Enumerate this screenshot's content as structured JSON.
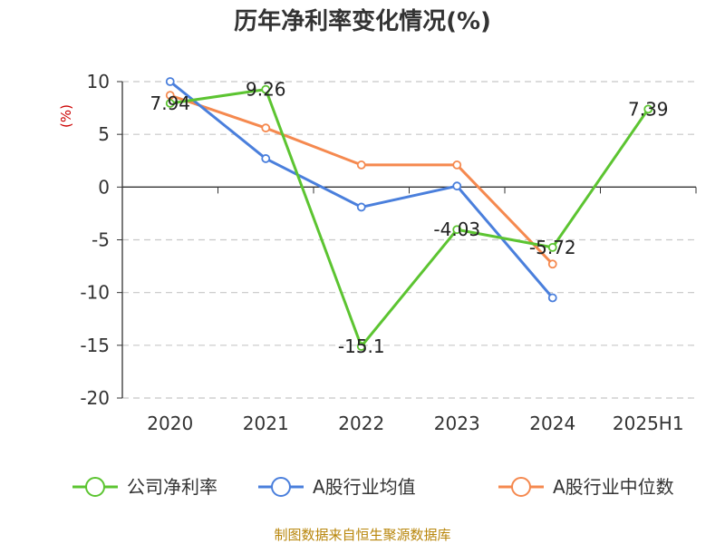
{
  "chart_data": {
    "type": "line",
    "title": "历年净利率变化情况(%)",
    "ylabel": "(%)",
    "categories": [
      "2020",
      "2021",
      "2022",
      "2023",
      "2024",
      "2025H1"
    ],
    "ylim": [
      -20,
      10
    ],
    "yticks": [
      10,
      5,
      0,
      -5,
      -10,
      -15,
      -20
    ],
    "grid": true,
    "legend_position": "bottom",
    "series": [
      {
        "name": "公司净利率",
        "color": "#5cc431",
        "values": [
          7.94,
          9.26,
          -15.1,
          -4.03,
          -5.72,
          7.39
        ],
        "labels": [
          "7.94",
          "9.26",
          "-15.1",
          "-4.03",
          "-5.72",
          "7.39"
        ]
      },
      {
        "name": "A股行业均值",
        "color": "#4a7fdc",
        "values": [
          10.0,
          2.7,
          -1.9,
          0.1,
          -10.5,
          null
        ]
      },
      {
        "name": "A股行业中位数",
        "color": "#f5894f",
        "values": [
          8.7,
          5.6,
          2.1,
          2.1,
          -7.3,
          null
        ]
      }
    ]
  },
  "source_text": "制图数据来自恒生聚源数据库"
}
